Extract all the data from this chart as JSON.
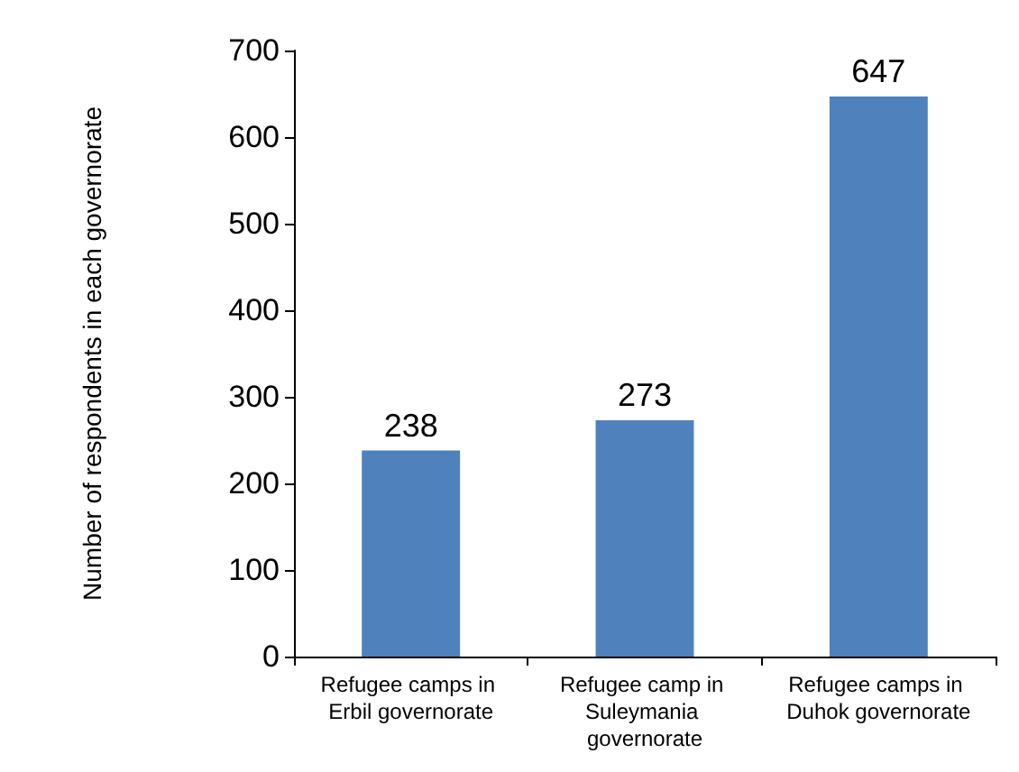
{
  "chart_data": {
    "type": "bar",
    "ylabel": "Number of respondents in each governorate",
    "categories": [
      "Refugee camps in Erbil governorate",
      "Refugee camp in Suleymania governorate",
      "Refugee camps in Duhok governorate"
    ],
    "values": [
      238,
      273,
      647
    ],
    "color": "#4f81bd",
    "ylim": [
      0,
      700
    ],
    "yticks": [
      0,
      100,
      200,
      300,
      400,
      500,
      600,
      700
    ],
    "grid": false,
    "data_labels": true
  }
}
